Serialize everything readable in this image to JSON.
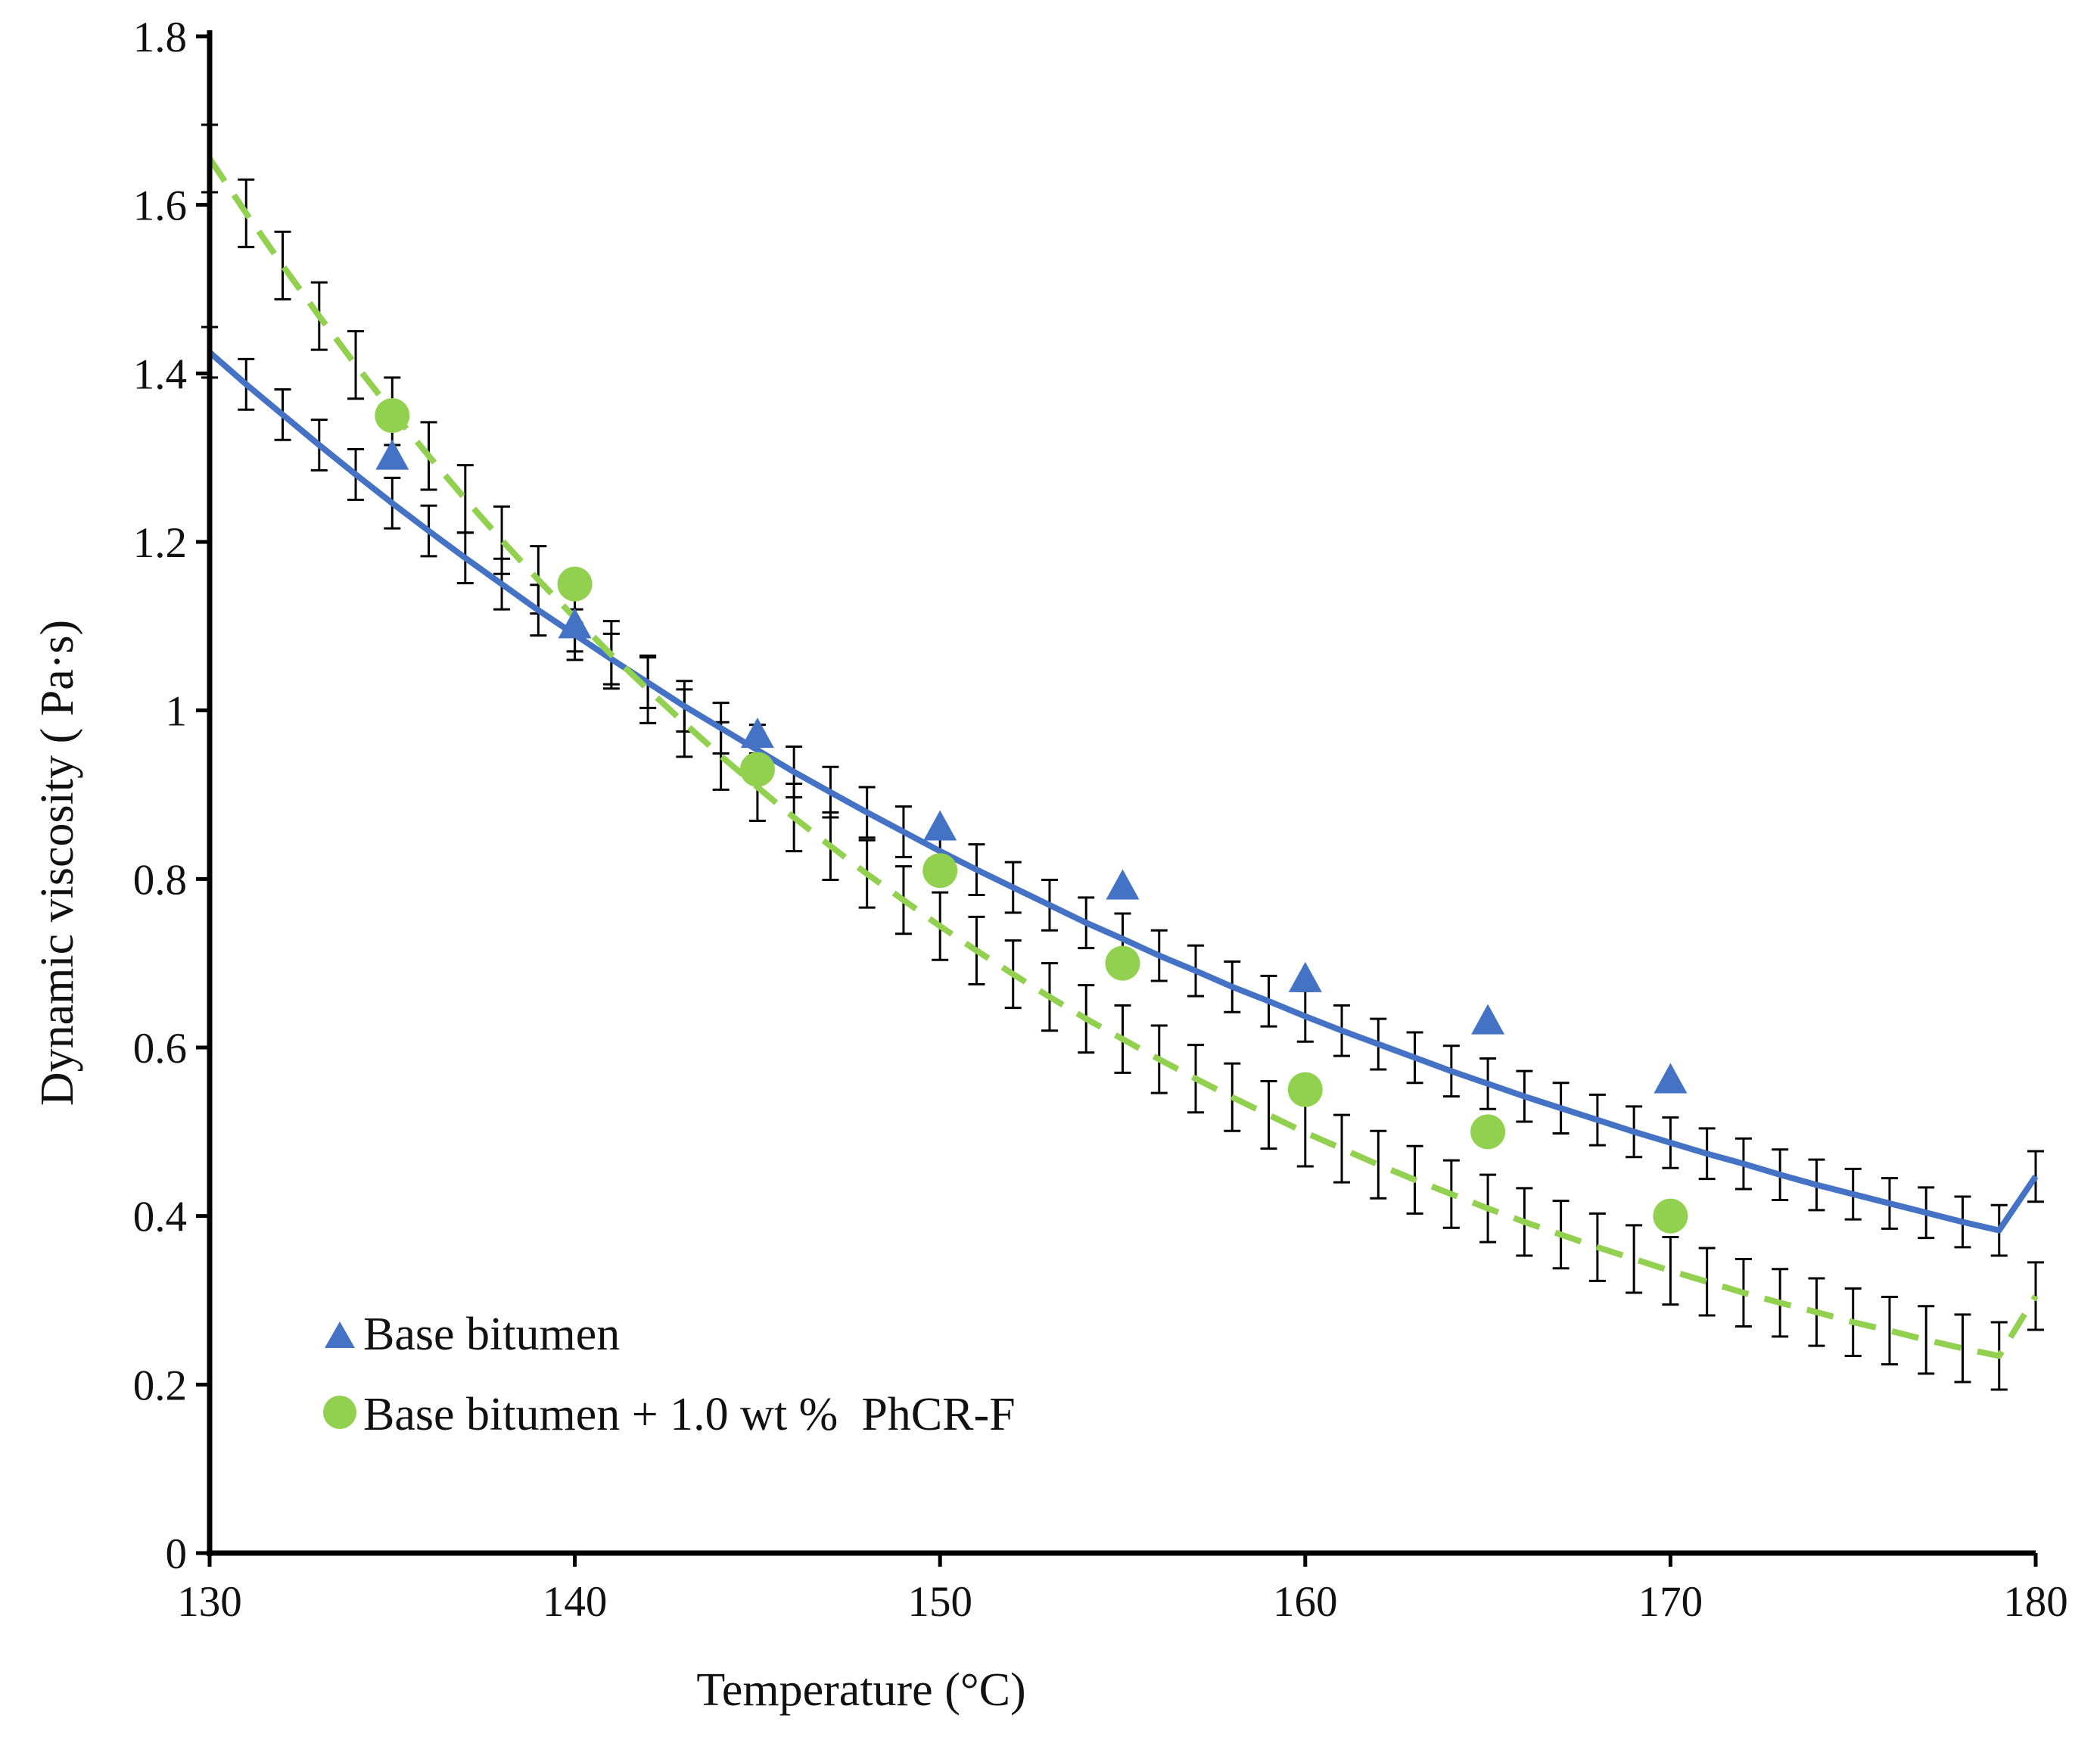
{
  "chart_data": {
    "type": "scatter",
    "xlabel": "Temperature (°C)",
    "ylabel": "Dynamic viscosity ( Pa·s)",
    "xlim": [
      130,
      180
    ],
    "ylim": [
      0,
      1.8
    ],
    "x_ticks": [
      "130",
      "140",
      "150",
      "160",
      "170",
      "180"
    ],
    "y_ticks": [
      "0",
      "0.2",
      "0.4",
      "0.6",
      "0.8",
      "1",
      "1.2",
      "1.4",
      "1.6",
      "1.8"
    ],
    "grid": false,
    "legend_position": "bottom-left",
    "series": [
      {
        "name": "Base bitumen",
        "marker": "triangle",
        "color": "#4472C4",
        "line_style": "solid",
        "x": [
          135,
          140,
          145,
          150,
          155,
          160,
          165,
          170
        ],
        "y": [
          1.3,
          1.1,
          0.97,
          0.86,
          0.79,
          0.68,
          0.63,
          0.56
        ],
        "fit": {
          "x": [
            130,
            131,
            132,
            133,
            134,
            135,
            136,
            137,
            138,
            139,
            140,
            141,
            142,
            143,
            144,
            145,
            146,
            147,
            148,
            149,
            150,
            151,
            152,
            153,
            154,
            155,
            156,
            157,
            158,
            159,
            160,
            161,
            162,
            163,
            164,
            165,
            166,
            167,
            168,
            169,
            170,
            171,
            172,
            173,
            174,
            175,
            176,
            177,
            178,
            179,
            180
          ],
          "y": [
            1.425,
            1.387,
            1.351,
            1.315,
            1.28,
            1.246,
            1.213,
            1.181,
            1.15,
            1.119,
            1.09,
            1.061,
            1.033,
            1.005,
            0.979,
            0.953,
            0.927,
            0.903,
            0.879,
            0.856,
            0.833,
            0.811,
            0.79,
            0.769,
            0.748,
            0.729,
            0.709,
            0.691,
            0.672,
            0.655,
            0.637,
            0.62,
            0.604,
            0.588,
            0.572,
            0.557,
            0.542,
            0.528,
            0.514,
            0.5,
            0.487,
            0.474,
            0.462,
            0.449,
            0.437,
            0.426,
            0.415,
            0.404,
            0.393,
            0.383,
            0.447
          ],
          "error": 0.03
        }
      },
      {
        "name": "Base bitumen + 1.0 wt %  PhCR-F",
        "marker": "circle",
        "color": "#92D050",
        "line_style": "dashed",
        "x": [
          135,
          140,
          145,
          150,
          155,
          160,
          165,
          170
        ],
        "y": [
          1.35,
          1.15,
          0.93,
          0.81,
          0.7,
          0.55,
          0.5,
          0.4
        ],
        "fit": {
          "x": [
            130,
            131,
            132,
            133,
            134,
            135,
            136,
            137,
            138,
            139,
            140,
            141,
            142,
            143,
            144,
            145,
            146,
            147,
            148,
            149,
            150,
            151,
            152,
            153,
            154,
            155,
            156,
            157,
            158,
            159,
            160,
            161,
            162,
            163,
            164,
            165,
            166,
            167,
            168,
            169,
            170,
            171,
            172,
            173,
            174,
            175,
            176,
            177,
            178,
            179,
            180
          ],
          "y": [
            1.655,
            1.59,
            1.528,
            1.468,
            1.41,
            1.355,
            1.302,
            1.251,
            1.202,
            1.155,
            1.11,
            1.066,
            1.025,
            0.985,
            0.946,
            0.909,
            0.873,
            0.839,
            0.806,
            0.775,
            0.744,
            0.715,
            0.687,
            0.66,
            0.634,
            0.61,
            0.586,
            0.563,
            0.541,
            0.52,
            0.499,
            0.48,
            0.461,
            0.443,
            0.426,
            0.409,
            0.393,
            0.378,
            0.363,
            0.349,
            0.335,
            0.322,
            0.309,
            0.297,
            0.286,
            0.274,
            0.264,
            0.253,
            0.243,
            0.234,
            0.305
          ],
          "error": 0.04
        }
      }
    ]
  }
}
